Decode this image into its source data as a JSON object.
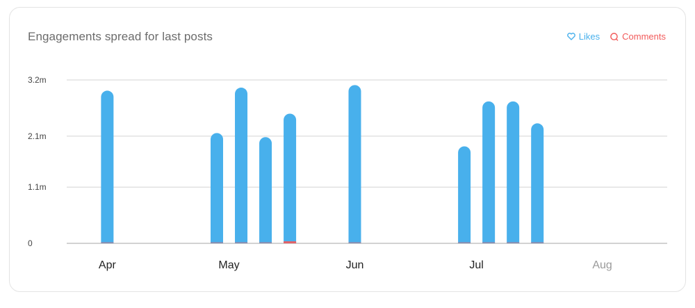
{
  "header": {
    "title": "Engagements spread for last posts"
  },
  "legend": [
    {
      "label": "Likes",
      "color": "#48b0ec",
      "icon": "heart-icon"
    },
    {
      "label": "Comments",
      "color": "#f25a5a",
      "icon": "comment-icon"
    }
  ],
  "chart_data": {
    "type": "bar",
    "title": "Engagements spread for last posts",
    "ytick_labels": [
      "0",
      "1.1m",
      "2.1m",
      "3.2m"
    ],
    "yticks": [
      0,
      1100000,
      2100000,
      3200000
    ],
    "ylim": [
      0,
      3200000
    ],
    "xtick_labels": [
      "Apr",
      "May",
      "Jun",
      "Jul",
      "Aug"
    ],
    "xtick_dates": [
      "2024-04-01",
      "2024-05-01",
      "2024-06-01",
      "2024-07-01",
      "2024-08-01"
    ],
    "xtick_colors": [
      "#222222",
      "#222222",
      "#222222",
      "#222222",
      "#9a9a9a"
    ],
    "xlim": [
      "2024-03-22",
      "2024-08-17"
    ],
    "grid": true,
    "legend_position": "top-right",
    "series": [
      {
        "name": "Likes",
        "color": "#48b0ec",
        "x": [
          "2024-04-01",
          "2024-04-28",
          "2024-05-04",
          "2024-05-10",
          "2024-05-16",
          "2024-06-01",
          "2024-06-28",
          "2024-07-04",
          "2024-07-10",
          "2024-07-16"
        ],
        "values": [
          2990000,
          2160000,
          3050000,
          2080000,
          2540000,
          3100000,
          1900000,
          2780000,
          2780000,
          2350000
        ]
      },
      {
        "name": "Comments",
        "color": "#f25a5a",
        "x": [
          "2024-04-01",
          "2024-04-28",
          "2024-05-04",
          "2024-05-10",
          "2024-05-16",
          "2024-06-01",
          "2024-06-28",
          "2024-07-04",
          "2024-07-10",
          "2024-07-16"
        ],
        "values": [
          8000,
          8000,
          10000,
          6000,
          40000,
          8000,
          6000,
          10000,
          10000,
          8000
        ]
      }
    ]
  }
}
